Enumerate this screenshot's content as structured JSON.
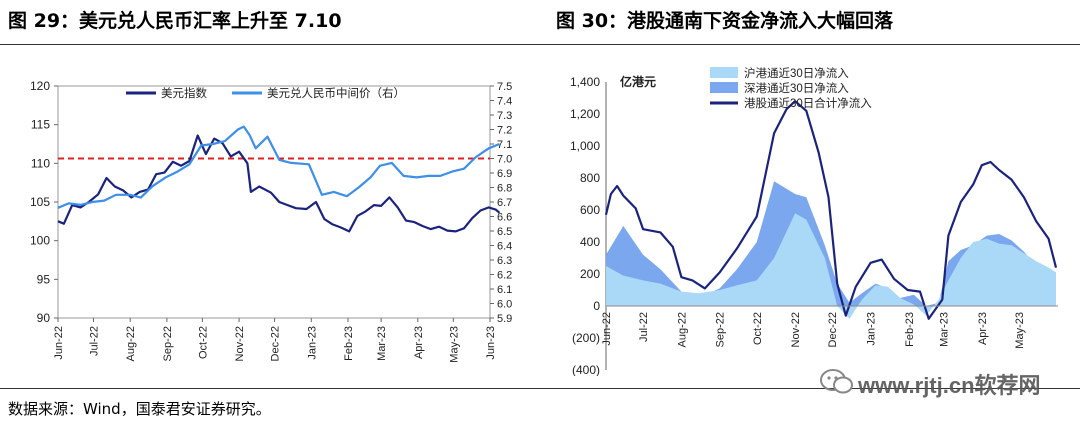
{
  "titles": {
    "left": "图 29：美元兑人民币汇率上升至 7.10",
    "right": "图 30：港股通南下资金净流入大幅回落"
  },
  "source": "数据来源：Wind，国泰君安证券研究。",
  "watermark": "www.rjtj.cn软荐网",
  "chart_data": [
    {
      "type": "line",
      "unit": "",
      "x_ticks": [
        "Jun-22",
        "Jul-22",
        "Aug-22",
        "Sep-22",
        "Oct-22",
        "Nov-22",
        "Dec-22",
        "Jan-23",
        "Feb-23",
        "Mar-23",
        "Apr-23",
        "May-23",
        "Jun-23"
      ],
      "y_left": {
        "ticks": [
          90,
          95,
          100,
          105,
          110,
          115,
          120
        ],
        "lim": [
          90,
          120
        ]
      },
      "y_right": {
        "ticks": [
          5.9,
          6.0,
          6.1,
          6.2,
          6.3,
          6.4,
          6.5,
          6.6,
          6.7,
          6.8,
          6.9,
          7.0,
          7.1,
          7.2,
          7.3,
          7.4,
          7.5
        ],
        "lim": [
          5.9,
          7.5
        ]
      },
      "reference_line": {
        "axis": "right",
        "value": 7.0,
        "color": "#e02020"
      },
      "legend_position": "top",
      "series": [
        {
          "name": "美元指数",
          "axis": "left",
          "color": "#1a237e",
          "points": [
            [
              "2022-06-01",
              102.5
            ],
            [
              "2022-06-06",
              102.2
            ],
            [
              "2022-06-13",
              104.6
            ],
            [
              "2022-06-20",
              104.3
            ],
            [
              "2022-06-27",
              105.0
            ],
            [
              "2022-07-05",
              106.0
            ],
            [
              "2022-07-12",
              108.1
            ],
            [
              "2022-07-19",
              107.0
            ],
            [
              "2022-07-26",
              106.5
            ],
            [
              "2022-08-02",
              105.6
            ],
            [
              "2022-08-09",
              106.3
            ],
            [
              "2022-08-16",
              106.6
            ],
            [
              "2022-08-23",
              108.6
            ],
            [
              "2022-08-30",
              108.8
            ],
            [
              "2022-09-06",
              110.2
            ],
            [
              "2022-09-13",
              109.7
            ],
            [
              "2022-09-20",
              110.3
            ],
            [
              "2022-09-27",
              113.6
            ],
            [
              "2022-10-04",
              111.2
            ],
            [
              "2022-10-11",
              113.2
            ],
            [
              "2022-10-18",
              112.6
            ],
            [
              "2022-10-25",
              110.9
            ],
            [
              "2022-11-01",
              111.5
            ],
            [
              "2022-11-08",
              110.0
            ],
            [
              "2022-11-11",
              106.3
            ],
            [
              "2022-11-18",
              107.0
            ],
            [
              "2022-11-28",
              106.2
            ],
            [
              "2022-12-05",
              105.0
            ],
            [
              "2022-12-12",
              104.6
            ],
            [
              "2022-12-19",
              104.2
            ],
            [
              "2022-12-28",
              104.1
            ],
            [
              "2023-01-05",
              105.0
            ],
            [
              "2023-01-12",
              102.8
            ],
            [
              "2023-01-19",
              102.1
            ],
            [
              "2023-01-26",
              101.7
            ],
            [
              "2023-02-02",
              101.2
            ],
            [
              "2023-02-09",
              103.2
            ],
            [
              "2023-02-16",
              103.8
            ],
            [
              "2023-02-23",
              104.6
            ],
            [
              "2023-03-01",
              104.5
            ],
            [
              "2023-03-08",
              105.6
            ],
            [
              "2023-03-15",
              104.3
            ],
            [
              "2023-03-22",
              102.6
            ],
            [
              "2023-03-29",
              102.4
            ],
            [
              "2023-04-05",
              101.9
            ],
            [
              "2023-04-12",
              101.5
            ],
            [
              "2023-04-19",
              101.8
            ],
            [
              "2023-04-26",
              101.3
            ],
            [
              "2023-05-03",
              101.2
            ],
            [
              "2023-05-10",
              101.6
            ],
            [
              "2023-05-17",
              102.9
            ],
            [
              "2023-05-24",
              103.9
            ],
            [
              "2023-05-31",
              104.3
            ],
            [
              "2023-06-06",
              104.0
            ],
            [
              "2023-06-09",
              103.6
            ]
          ]
        },
        {
          "name": "美元兑人民币中间价（右）",
          "axis": "right",
          "color": "#3d8fe8",
          "points": [
            [
              "2022-06-01",
              6.66
            ],
            [
              "2022-06-10",
              6.69
            ],
            [
              "2022-06-20",
              6.68
            ],
            [
              "2022-06-30",
              6.7
            ],
            [
              "2022-07-10",
              6.71
            ],
            [
              "2022-07-20",
              6.75
            ],
            [
              "2022-08-01",
              6.75
            ],
            [
              "2022-08-10",
              6.73
            ],
            [
              "2022-08-20",
              6.81
            ],
            [
              "2022-08-31",
              6.87
            ],
            [
              "2022-09-10",
              6.91
            ],
            [
              "2022-09-20",
              6.96
            ],
            [
              "2022-09-30",
              7.09
            ],
            [
              "2022-10-10",
              7.1
            ],
            [
              "2022-10-20",
              7.12
            ],
            [
              "2022-10-31",
              7.2
            ],
            [
              "2022-11-05",
              7.22
            ],
            [
              "2022-11-10",
              7.16
            ],
            [
              "2022-11-15",
              7.07
            ],
            [
              "2022-11-25",
              7.15
            ],
            [
              "2022-12-05",
              6.99
            ],
            [
              "2022-12-15",
              6.97
            ],
            [
              "2022-12-30",
              6.96
            ],
            [
              "2023-01-10",
              6.75
            ],
            [
              "2023-01-20",
              6.77
            ],
            [
              "2023-01-31",
              6.74
            ],
            [
              "2023-02-10",
              6.8
            ],
            [
              "2023-02-20",
              6.87
            ],
            [
              "2023-02-28",
              6.95
            ],
            [
              "2023-03-10",
              6.97
            ],
            [
              "2023-03-20",
              6.88
            ],
            [
              "2023-03-31",
              6.87
            ],
            [
              "2023-04-10",
              6.88
            ],
            [
              "2023-04-20",
              6.88
            ],
            [
              "2023-04-30",
              6.91
            ],
            [
              "2023-05-10",
              6.93
            ],
            [
              "2023-05-20",
              7.01
            ],
            [
              "2023-05-31",
              7.07
            ],
            [
              "2023-06-09",
              7.1
            ]
          ]
        }
      ]
    },
    {
      "type": "area",
      "unit": "亿港元",
      "x_ticks": [
        "Jun-22",
        "Jul-22",
        "Aug-22",
        "Sep-22",
        "Oct-22",
        "Nov-22",
        "Dec-22",
        "Jan-23",
        "Feb-23",
        "Mar-23",
        "Apr-23",
        "May-23"
      ],
      "y": {
        "ticks": [
          -400,
          -200,
          0,
          200,
          400,
          600,
          800,
          1000,
          1200,
          1400
        ],
        "tick_labels": [
          "(400)",
          "(200)",
          "0",
          "200",
          "400",
          "600",
          "800",
          "1,000",
          "1,200",
          "1,400"
        ],
        "lim": [
          -400,
          1400
        ]
      },
      "legend_position": "top-left",
      "series": [
        {
          "name": "沪港通近30日净流入",
          "color": "#a9d9f7",
          "kind": "area",
          "points": [
            [
              "2022-06-01",
              250
            ],
            [
              "2022-06-15",
              190
            ],
            [
              "2022-07-01",
              160
            ],
            [
              "2022-07-15",
              140
            ],
            [
              "2022-08-01",
              90
            ],
            [
              "2022-08-15",
              80
            ],
            [
              "2022-09-01",
              100
            ],
            [
              "2022-09-15",
              130
            ],
            [
              "2022-10-01",
              160
            ],
            [
              "2022-10-15",
              300
            ],
            [
              "2022-11-01",
              580
            ],
            [
              "2022-11-10",
              540
            ],
            [
              "2022-11-25",
              300
            ],
            [
              "2022-12-05",
              0
            ],
            [
              "2022-12-15",
              -80
            ],
            [
              "2022-12-25",
              40
            ],
            [
              "2023-01-05",
              130
            ],
            [
              "2023-01-15",
              120
            ],
            [
              "2023-01-25",
              50
            ],
            [
              "2023-02-05",
              10
            ],
            [
              "2023-02-15",
              -60
            ],
            [
              "2023-02-25",
              40
            ],
            [
              "2023-03-05",
              160
            ],
            [
              "2023-03-15",
              300
            ],
            [
              "2023-03-25",
              400
            ],
            [
              "2023-04-05",
              420
            ],
            [
              "2023-04-15",
              390
            ],
            [
              "2023-04-25",
              380
            ],
            [
              "2023-05-05",
              330
            ],
            [
              "2023-05-15",
              280
            ],
            [
              "2023-05-25",
              240
            ],
            [
              "2023-05-31",
              210
            ]
          ]
        },
        {
          "name": "深港通近30日净流入",
          "color": "#7aa7ee",
          "kind": "area",
          "points": [
            [
              "2022-06-01",
              320
            ],
            [
              "2022-06-15",
              500
            ],
            [
              "2022-07-01",
              320
            ],
            [
              "2022-07-15",
              230
            ],
            [
              "2022-08-01",
              90
            ],
            [
              "2022-08-15",
              50
            ],
            [
              "2022-09-01",
              110
            ],
            [
              "2022-09-15",
              230
            ],
            [
              "2022-10-01",
              400
            ],
            [
              "2022-10-15",
              780
            ],
            [
              "2022-11-01",
              700
            ],
            [
              "2022-11-10",
              680
            ],
            [
              "2022-11-25",
              380
            ],
            [
              "2022-12-05",
              140
            ],
            [
              "2022-12-15",
              20
            ],
            [
              "2022-12-25",
              80
            ],
            [
              "2023-01-05",
              140
            ],
            [
              "2023-01-15",
              110
            ],
            [
              "2023-01-25",
              50
            ],
            [
              "2023-02-05",
              70
            ],
            [
              "2023-02-15",
              0
            ],
            [
              "2023-02-25",
              20
            ],
            [
              "2023-03-05",
              280
            ],
            [
              "2023-03-15",
              350
            ],
            [
              "2023-03-25",
              380
            ],
            [
              "2023-04-05",
              440
            ],
            [
              "2023-04-15",
              450
            ],
            [
              "2023-04-25",
              410
            ],
            [
              "2023-05-05",
              340
            ],
            [
              "2023-05-15",
              250
            ],
            [
              "2023-05-25",
              180
            ],
            [
              "2023-05-31",
              30
            ]
          ]
        },
        {
          "name": "港股通近30日合计净流入",
          "color": "#1a237e",
          "kind": "line",
          "points": [
            [
              "2022-06-01",
              570
            ],
            [
              "2022-06-05",
              700
            ],
            [
              "2022-06-10",
              750
            ],
            [
              "2022-06-15",
              690
            ],
            [
              "2022-06-25",
              610
            ],
            [
              "2022-07-01",
              480
            ],
            [
              "2022-07-15",
              460
            ],
            [
              "2022-07-25",
              370
            ],
            [
              "2022-08-01",
              180
            ],
            [
              "2022-08-10",
              160
            ],
            [
              "2022-08-20",
              110
            ],
            [
              "2022-09-01",
              210
            ],
            [
              "2022-09-15",
              360
            ],
            [
              "2022-10-01",
              560
            ],
            [
              "2022-10-15",
              1080
            ],
            [
              "2022-10-25",
              1230
            ],
            [
              "2022-11-01",
              1280
            ],
            [
              "2022-11-10",
              1220
            ],
            [
              "2022-11-20",
              960
            ],
            [
              "2022-11-28",
              680
            ],
            [
              "2022-12-05",
              140
            ],
            [
              "2022-12-12",
              -60
            ],
            [
              "2022-12-20",
              120
            ],
            [
              "2023-01-01",
              270
            ],
            [
              "2023-01-10",
              290
            ],
            [
              "2023-01-20",
              170
            ],
            [
              "2023-01-31",
              100
            ],
            [
              "2023-02-10",
              90
            ],
            [
              "2023-02-17",
              -80
            ],
            [
              "2023-02-28",
              40
            ],
            [
              "2023-03-05",
              440
            ],
            [
              "2023-03-15",
              650
            ],
            [
              "2023-03-25",
              760
            ],
            [
              "2023-04-01",
              880
            ],
            [
              "2023-04-08",
              900
            ],
            [
              "2023-04-15",
              850
            ],
            [
              "2023-04-25",
              790
            ],
            [
              "2023-05-05",
              680
            ],
            [
              "2023-05-15",
              530
            ],
            [
              "2023-05-25",
              420
            ],
            [
              "2023-05-31",
              240
            ]
          ]
        }
      ]
    }
  ]
}
